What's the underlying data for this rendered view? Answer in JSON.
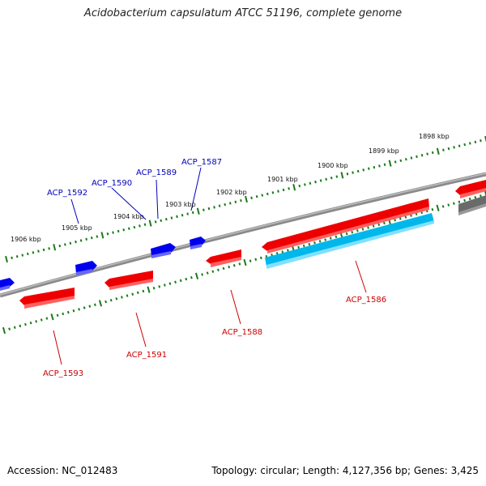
{
  "title": "Acidobacterium capsulatum ATCC 51196, complete genome",
  "footer": {
    "accession": "Accession: NC_012483",
    "summary": "Topology: circular; Length: 4,127,356 bp; Genes: 3,425"
  },
  "colors": {
    "forward_gene": "#0000ee",
    "reverse_gene": "#ee0000",
    "rna_gene": "#00bbee",
    "backbone": "#808080",
    "tick": "#1a7a1a",
    "forward_label": "#0000bb",
    "reverse_label": "#cc0000"
  },
  "ruler": {
    "unit": "kbp",
    "labels": [
      "1898 kbp",
      "1899 kbp",
      "1900 kbp",
      "1901 kbp",
      "1902 kbp",
      "1903 kbp",
      "1904 kbp",
      "1905 kbp",
      "1906 kbp"
    ]
  },
  "genes": [
    {
      "id": "ACP_1587",
      "strand": "forward"
    },
    {
      "id": "ACP_1589",
      "strand": "forward"
    },
    {
      "id": "ACP_1590",
      "strand": "forward"
    },
    {
      "id": "ACP_1592",
      "strand": "forward"
    },
    {
      "id": "ACP_1586",
      "strand": "reverse",
      "type": "rna"
    },
    {
      "id": "ACP_1588",
      "strand": "reverse"
    },
    {
      "id": "ACP_1591",
      "strand": "reverse"
    },
    {
      "id": "ACP_1593",
      "strand": "reverse"
    }
  ]
}
